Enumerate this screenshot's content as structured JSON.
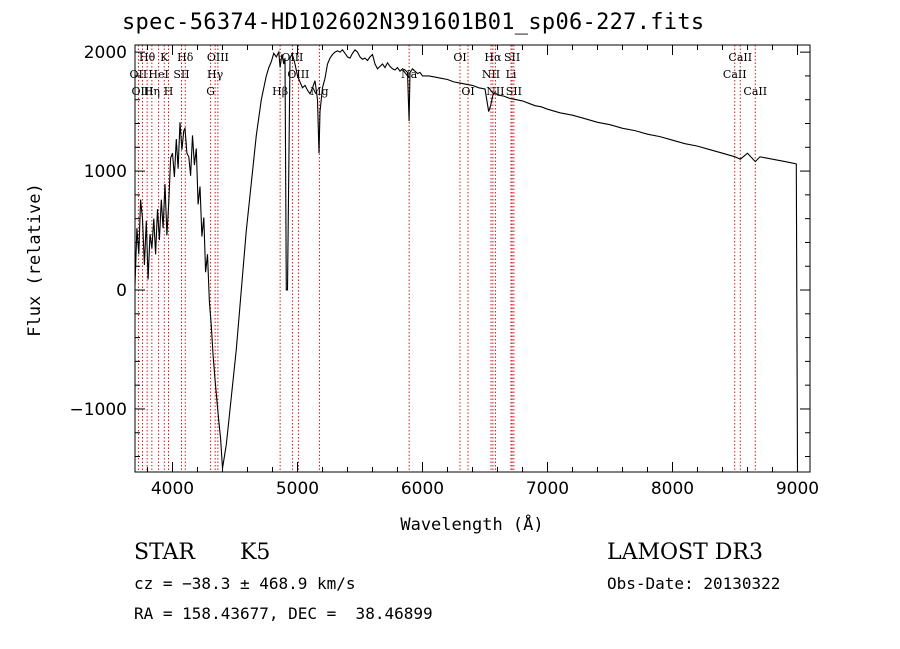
{
  "header": {
    "title": "spec-56374-HD102602N391601B01_sp06-227.fits"
  },
  "footer": {
    "object_class": "STAR",
    "subclass": "K5",
    "survey": "LAMOST DR3",
    "redshift_text": "cz = −38.3 ± 468.9 km/s",
    "obs_date_text": "Obs-Date: 20130322",
    "coords_text": "RA = 158.43677, DEC =  38.46899"
  },
  "colors": {
    "line": "#000000",
    "marker": "#cc0000",
    "background": "#ffffff"
  },
  "chart_data": {
    "type": "line",
    "title": "spec-56374-HD102602N391601B01_sp06-227.fits",
    "xlabel": "Wavelength (Å)",
    "ylabel": "Flux (relative)",
    "xlim": [
      3700,
      9100
    ],
    "ylim": [
      -1530,
      2060
    ],
    "xticks": [
      4000,
      5000,
      6000,
      7000,
      8000,
      9000
    ],
    "yticks": [
      -1000,
      0,
      1000,
      2000
    ],
    "ytick_labels": [
      "−1000",
      "0",
      "1000",
      "2000"
    ],
    "series": [
      {
        "name": "flux",
        "x": [
          3700,
          3715,
          3730,
          3745,
          3760,
          3775,
          3790,
          3805,
          3820,
          3835,
          3850,
          3865,
          3880,
          3895,
          3910,
          3925,
          3940,
          3955,
          3970,
          3985,
          4000,
          4015,
          4030,
          4045,
          4060,
          4075,
          4090,
          4100,
          4115,
          4130,
          4145,
          4160,
          4175,
          4190,
          4205,
          4220,
          4235,
          4250,
          4265,
          4280,
          4295,
          4310,
          4325,
          4340,
          4355,
          4370,
          4385,
          4400,
          4415,
          4430,
          4450,
          4470,
          4490,
          4510,
          4530,
          4550,
          4570,
          4590,
          4610,
          4630,
          4650,
          4670,
          4690,
          4710,
          4730,
          4750,
          4770,
          4790,
          4810,
          4830,
          4850,
          4861,
          4875,
          4890,
          4900,
          4910,
          4920,
          4940,
          4955,
          4965,
          4980,
          5000,
          5020,
          5040,
          5060,
          5080,
          5100,
          5120,
          5140,
          5160,
          5172,
          5180,
          5200,
          5220,
          5240,
          5260,
          5280,
          5300,
          5320,
          5340,
          5360,
          5380,
          5400,
          5420,
          5440,
          5460,
          5480,
          5500,
          5520,
          5540,
          5560,
          5580,
          5600,
          5620,
          5640,
          5660,
          5680,
          5700,
          5720,
          5740,
          5760,
          5780,
          5800,
          5820,
          5840,
          5860,
          5880,
          5893,
          5900,
          5920,
          5940,
          5960,
          5980,
          6000,
          6050,
          6100,
          6150,
          6200,
          6250,
          6300,
          6350,
          6400,
          6450,
          6500,
          6530,
          6545,
          6563,
          6580,
          6600,
          6650,
          6700,
          6750,
          6800,
          6850,
          6900,
          6950,
          7000,
          7100,
          7200,
          7300,
          7400,
          7500,
          7600,
          7700,
          7800,
          7900,
          8000,
          8100,
          8200,
          8300,
          8400,
          8500,
          8542,
          8600,
          8662,
          8700,
          8800,
          8900,
          8950,
          8990,
          9000
        ],
        "y": [
          40,
          520,
          300,
          760,
          600,
          210,
          580,
          90,
          470,
          350,
          600,
          300,
          680,
          420,
          760,
          520,
          890,
          460,
          740,
          1110,
          1150,
          950,
          1270,
          1020,
          1410,
          1180,
          1340,
          1360,
          1150,
          1120,
          960,
          1300,
          1050,
          1190,
          720,
          870,
          450,
          610,
          150,
          300,
          -100,
          -300,
          -550,
          -750,
          -930,
          -1100,
          -1250,
          -1500,
          -1400,
          -1300,
          -1100,
          -900,
          -700,
          -500,
          -250,
          0,
          250,
          500,
          700,
          900,
          1100,
          1300,
          1450,
          1600,
          1700,
          1800,
          1870,
          1920,
          1990,
          1960,
          2000,
          1870,
          1980,
          1900,
          1950,
          0,
          0,
          1950,
          1980,
          1960,
          1900,
          1800,
          1750,
          1700,
          1720,
          1680,
          1650,
          1700,
          1760,
          1600,
          1150,
          1500,
          1700,
          1780,
          1900,
          1950,
          1980,
          2000,
          2010,
          2000,
          2020,
          1990,
          1960,
          1950,
          1990,
          2020,
          2000,
          1960,
          1940,
          1950,
          1930,
          1960,
          1980,
          1900,
          1860,
          1880,
          1900,
          1870,
          1910,
          1880,
          1860,
          1850,
          1870,
          1840,
          1860,
          1850,
          1830,
          1420,
          1830,
          1860,
          1840,
          1820,
          1830,
          1800,
          1800,
          1790,
          1780,
          1770,
          1750,
          1740,
          1730,
          1720,
          1700,
          1690,
          1500,
          1550,
          1640,
          1660,
          1640,
          1630,
          1610,
          1600,
          1590,
          1570,
          1550,
          1540,
          1520,
          1490,
          1470,
          1440,
          1410,
          1390,
          1360,
          1340,
          1310,
          1290,
          1260,
          1230,
          1210,
          1180,
          1150,
          1120,
          1100,
          1150,
          1080,
          1120,
          1100,
          1080,
          1070,
          1060,
          -1530
        ]
      }
    ],
    "line_markers": [
      {
        "name": "Hθ",
        "wave": 3797,
        "row": 1
      },
      {
        "name": "OII",
        "wave": 3727,
        "row": 2
      },
      {
        "name": "OIII",
        "wave": 3760,
        "row": 3
      },
      {
        "name": "K",
        "wave": 3934,
        "row": 1
      },
      {
        "name": "HeI",
        "wave": 3889,
        "row": 2
      },
      {
        "name": "Hη",
        "wave": 3835,
        "row": 3
      },
      {
        "name": "Hδ",
        "wave": 4102,
        "row": 1
      },
      {
        "name": "SII",
        "wave": 4072,
        "row": 2
      },
      {
        "name": "H",
        "wave": 3968,
        "row": 3
      },
      {
        "name": "OIII",
        "wave": 4363,
        "row": 1
      },
      {
        "name": "Hγ",
        "wave": 4341,
        "row": 2
      },
      {
        "name": "G",
        "wave": 4305,
        "row": 3
      },
      {
        "name": "OIII",
        "wave": 4959,
        "row": 1
      },
      {
        "name": "OIII",
        "wave": 5007,
        "row": 2
      },
      {
        "name": "Hβ",
        "wave": 4861,
        "row": 3
      },
      {
        "name": "Mg",
        "wave": 5175,
        "row": 3
      },
      {
        "name": "Na",
        "wave": 5893,
        "row": 2
      },
      {
        "name": "OI",
        "wave": 6300,
        "row": 1
      },
      {
        "name": "OI",
        "wave": 6364,
        "row": 3
      },
      {
        "name": "Hα",
        "wave": 6563,
        "row": 1
      },
      {
        "name": "NII",
        "wave": 6548,
        "row": 2
      },
      {
        "name": "NII",
        "wave": 6583,
        "row": 3
      },
      {
        "name": "SII",
        "wave": 6717,
        "row": 1
      },
      {
        "name": "Li",
        "wave": 6708,
        "row": 2
      },
      {
        "name": "SII",
        "wave": 6731,
        "row": 3
      },
      {
        "name": "CaII",
        "wave": 8542,
        "row": 1
      },
      {
        "name": "CaII",
        "wave": 8498,
        "row": 2
      },
      {
        "name": "CaII",
        "wave": 8662,
        "row": 3
      }
    ]
  }
}
